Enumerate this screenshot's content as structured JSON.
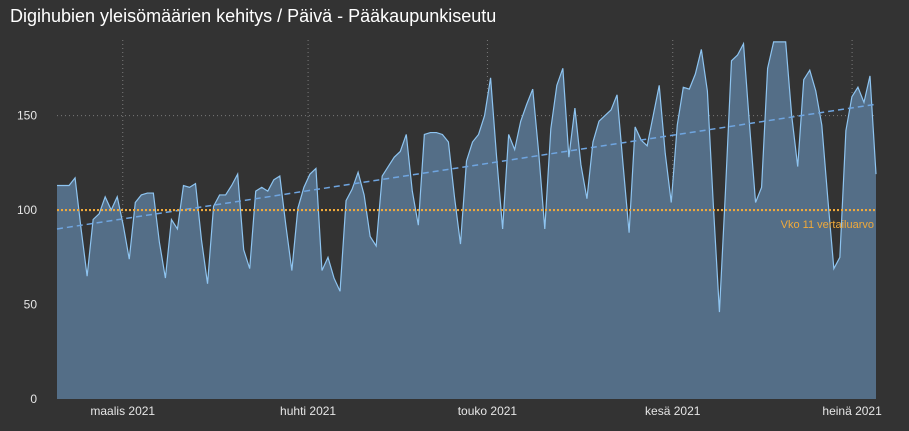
{
  "title": "Digihubien yleisömäärien kehitys / Päivä - Pääkaupunkiseutu",
  "colors": {
    "background": "#333333",
    "area_fill": "#546e87",
    "line": "#8ec4f0",
    "trend": "#6fa5e0",
    "reference": "#f0a93a",
    "grid": "#7a7a7a"
  },
  "chart_data": {
    "type": "area",
    "title": "Digihubien yleisömäärien kehitys / Päivä - Pääkaupunkiseutu",
    "x_start": "2021-02-18",
    "x_end": "2021-07-05",
    "xticks": [
      {
        "date": "2021-03-01",
        "label": "maalis 2021"
      },
      {
        "date": "2021-04-01",
        "label": "huhti 2021"
      },
      {
        "date": "2021-05-01",
        "label": "touko 2021"
      },
      {
        "date": "2021-06-01",
        "label": "kesä 2021"
      },
      {
        "date": "2021-07-01",
        "label": "heinä 2021"
      }
    ],
    "yticks": [
      0,
      50,
      100,
      150
    ],
    "ylim": [
      0,
      190
    ],
    "values": [
      113,
      113,
      113,
      117,
      90,
      65,
      95,
      98,
      107,
      100,
      107,
      92,
      74,
      104,
      108,
      109,
      109,
      83,
      64,
      95,
      90,
      113,
      112,
      114,
      84,
      61,
      102,
      108,
      108,
      113,
      119,
      79,
      69,
      110,
      112,
      110,
      116,
      118,
      92,
      68,
      101,
      112,
      119,
      122,
      68,
      75,
      64,
      57,
      105,
      111,
      120,
      108,
      86,
      81,
      118,
      123,
      128,
      131,
      140,
      110,
      92,
      140,
      141,
      141,
      140,
      136,
      107,
      82,
      126,
      136,
      140,
      150,
      170,
      128,
      90,
      140,
      132,
      147,
      156,
      164,
      130,
      90,
      143,
      166,
      175,
      128,
      154,
      124,
      106,
      136,
      147,
      150,
      153,
      161,
      124,
      88,
      144,
      137,
      134,
      150,
      166,
      130,
      104,
      145,
      165,
      164,
      172,
      185,
      163,
      102,
      46,
      110,
      179,
      182,
      188,
      145,
      104,
      112,
      175,
      189,
      189,
      189,
      150,
      123,
      169,
      174,
      163,
      145,
      106,
      69,
      75,
      142,
      160,
      165,
      157,
      171,
      119
    ],
    "trend": {
      "type": "linear",
      "start": 90,
      "end": 156
    },
    "reference_line": {
      "value": 100,
      "label": "Vko 11 vertailuarvo"
    }
  }
}
